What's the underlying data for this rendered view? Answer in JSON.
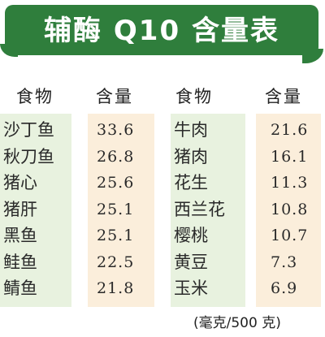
{
  "title": "辅酶 Q10 含量表",
  "headers": {
    "food": "食物",
    "content": "含量"
  },
  "left_table": {
    "foods": [
      "沙丁鱼",
      "秋刀鱼",
      "猪心",
      "猪肝",
      "黑鱼",
      "鲑鱼",
      "鲭鱼"
    ],
    "values": [
      "33.6",
      "26.8",
      "25.6",
      "25.1",
      "25.1",
      "22.5",
      "21.8"
    ]
  },
  "right_table": {
    "foods": [
      "牛肉",
      "猪肉",
      "花生",
      "西兰花",
      "樱桃",
      "黄豆",
      "玉米"
    ],
    "values": [
      "21.6",
      "16.1",
      "11.3",
      "10.8",
      "10.7",
      "7.3",
      "6.9"
    ]
  },
  "unit": "(毫克/500 克)",
  "colors": {
    "banner": "#2f7e3c",
    "food_column_bg": "#e8f2df",
    "value_column_bg": "#fbeedb"
  }
}
